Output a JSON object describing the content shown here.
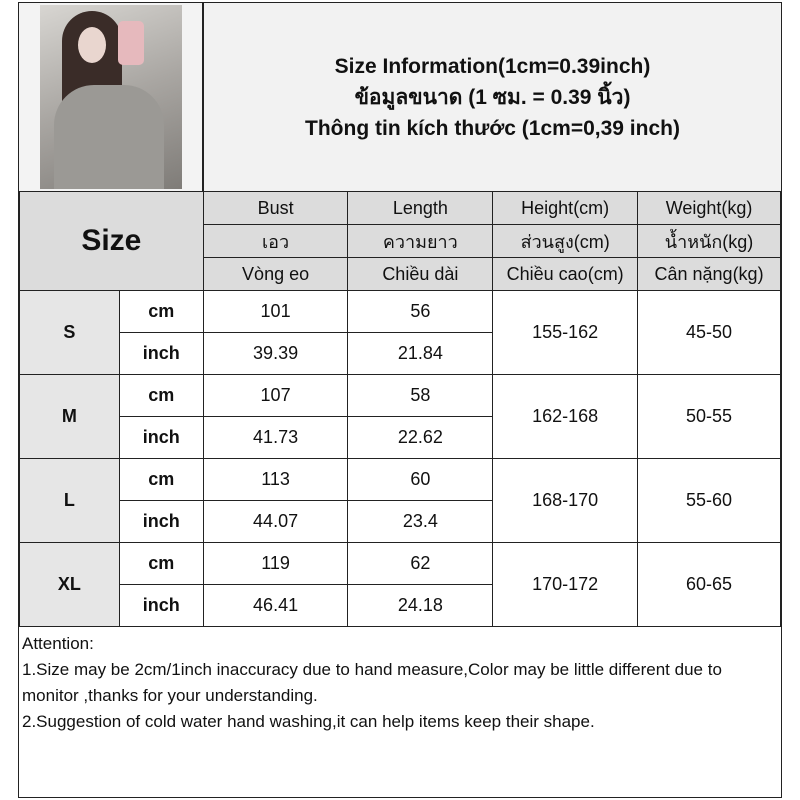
{
  "title": {
    "lines": [
      "Size Information(1cm=0.39inch)",
      "ข้อมูลขนาด (1 ซม. = 0.39 นิ้ว)",
      "Thông tin kích thước (1cm=0,39 inch)"
    ]
  },
  "header": {
    "size_label": "Size",
    "columns": [
      {
        "en": "Bust",
        "th": "เอว",
        "vi": "Vòng eo"
      },
      {
        "en": "Length",
        "th": "ความยาว",
        "vi": "Chiều dài"
      },
      {
        "en": "Height(cm)",
        "th": "ส่วนสูง(cm)",
        "vi": "Chiều cao(cm)"
      },
      {
        "en": "Weight(kg)",
        "th": "น้ำหนัก(kg)",
        "vi": "Cân nặng(kg)"
      }
    ]
  },
  "rows": [
    {
      "size": "S",
      "cm": [
        "cm",
        "101",
        "56"
      ],
      "inch": [
        "inch",
        "39.39",
        "21.84"
      ],
      "height": "155-162",
      "weight": "45-50"
    },
    {
      "size": "M",
      "cm": [
        "cm",
        "107",
        "58"
      ],
      "inch": [
        "inch",
        "41.73",
        "22.62"
      ],
      "height": "162-168",
      "weight": "50-55"
    },
    {
      "size": "L",
      "cm": [
        "cm",
        "113",
        "60"
      ],
      "inch": [
        "inch",
        "44.07",
        "23.4"
      ],
      "height": "168-170",
      "weight": "55-60"
    },
    {
      "size": "XL",
      "cm": [
        "cm",
        "119",
        "62"
      ],
      "inch": [
        "inch",
        "46.41",
        "24.18"
      ],
      "height": "170-172",
      "weight": "60-65"
    }
  ],
  "attention": {
    "heading": "Attention:",
    "notes": [
      "1.Size may be 2cm/1inch inaccuracy due to hand measure,Color may be little different due to monitor ,thanks for your understanding.",
      "2.Suggestion of cold water hand washing,it can help items keep their shape."
    ]
  }
}
